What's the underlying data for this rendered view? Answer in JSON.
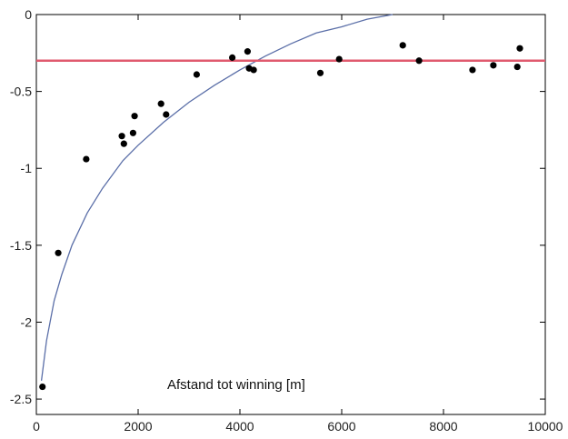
{
  "chart_data": {
    "type": "scatter",
    "xlabel": "Afstand tot winning [m]",
    "ylabel": "",
    "xlim": [
      0,
      10000
    ],
    "ylim": [
      -2.6,
      0
    ],
    "x_ticks": [
      0,
      2000,
      4000,
      6000,
      8000,
      10000
    ],
    "x_tick_labels": [
      "0",
      "2000",
      "4000",
      "6000",
      "8000",
      "10000"
    ],
    "y_ticks": [
      0,
      -0.5,
      -1,
      -1.5,
      -2,
      -2.5
    ],
    "y_tick_labels": [
      "0",
      "-0.5",
      "-1",
      "-1.5",
      "-2",
      "-2.5"
    ],
    "grid": false,
    "series": [
      {
        "kind": "points",
        "color": "#000000",
        "x": [
          120,
          430,
          980,
          1680,
          1720,
          1900,
          1930,
          2450,
          2550,
          3150,
          3850,
          4150,
          4180,
          4270,
          5580,
          5950,
          7200,
          7520,
          8570,
          8980,
          9450,
          9500
        ],
        "y": [
          -2.42,
          -1.55,
          -0.94,
          -0.79,
          -0.84,
          -0.77,
          -0.66,
          -0.58,
          -0.65,
          -0.39,
          -0.28,
          -0.24,
          -0.35,
          -0.36,
          -0.38,
          -0.29,
          -0.2,
          -0.3,
          -0.36,
          -0.33,
          -0.34,
          -0.22
        ]
      },
      {
        "kind": "line",
        "color": "#5b6fa8",
        "x": [
          100,
          200,
          350,
          500,
          700,
          1000,
          1300,
          1700,
          2000,
          2500,
          3000,
          3500,
          4000,
          4500,
          5000,
          5500,
          6000,
          6500,
          7000
        ],
        "y": [
          -2.38,
          -2.12,
          -1.86,
          -1.69,
          -1.5,
          -1.29,
          -1.13,
          -0.95,
          -0.85,
          -0.7,
          -0.57,
          -0.46,
          -0.36,
          -0.27,
          -0.19,
          -0.12,
          -0.08,
          -0.03,
          0.0
        ]
      },
      {
        "kind": "hline",
        "color": "#e05a6e",
        "y": -0.3
      }
    ]
  }
}
